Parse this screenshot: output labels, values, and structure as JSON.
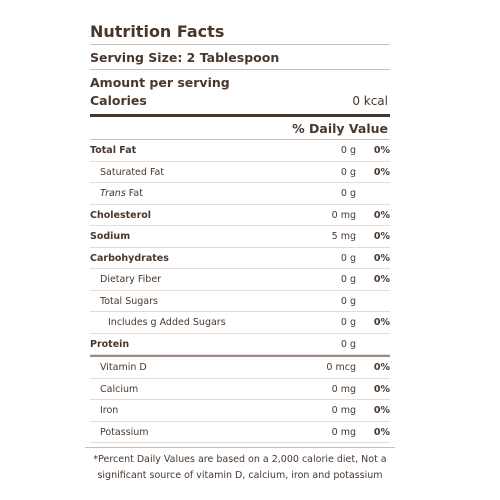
{
  "header": {
    "title": "Nutrition Facts",
    "serving_size": "Serving Size: 2 Tablespoon",
    "amount_per_serving": "Amount per serving",
    "calories_label": "Calories",
    "calories_value": "0 kcal",
    "daily_value_heading": "% Daily Value"
  },
  "rows": [
    {
      "name": "Total Fat",
      "bold": true,
      "amount": "0 g",
      "dv": "0%"
    },
    {
      "name": "Saturated Fat",
      "indent": 1,
      "amount": "0 g",
      "dv": "0%"
    },
    {
      "prefix": "Trans",
      "name": "Fat",
      "indent": 1,
      "amount": "0 g"
    },
    {
      "name": "Cholesterol",
      "bold": true,
      "amount": "0 mg",
      "dv": "0%"
    },
    {
      "name": "Sodium",
      "bold": true,
      "amount": "5 mg",
      "dv": "0%"
    },
    {
      "name": "Carbohydrates",
      "bold": true,
      "amount": "0 g",
      "dv": "0%"
    },
    {
      "name": "Dietary Fiber",
      "indent": 1,
      "amount": "0 g",
      "dv": "0%"
    },
    {
      "name": "Total Sugars",
      "indent": 1,
      "amount": "0 g"
    },
    {
      "name": "Includes g Added Sugars",
      "indent": 2,
      "amount": "0 g",
      "dv": "0%"
    },
    {
      "name": "Protein",
      "bold": true,
      "amount": "0 g"
    },
    {
      "name": "Vitamin D",
      "indent": 1,
      "amount": "0 mcg",
      "dv": "0%",
      "section_break": true
    },
    {
      "name": "Calcium",
      "indent": 1,
      "amount": "0 mg",
      "dv": "0%"
    },
    {
      "name": "Iron",
      "indent": 1,
      "amount": "0 mg",
      "dv": "0%"
    },
    {
      "name": "Potassium",
      "indent": 1,
      "amount": "0 mg",
      "dv": "0%"
    }
  ],
  "footnote": "*Percent Daily Values are based on a 2,000 calorie diet, Not a significant source of vitamin D, calcium, iron and potassium"
}
